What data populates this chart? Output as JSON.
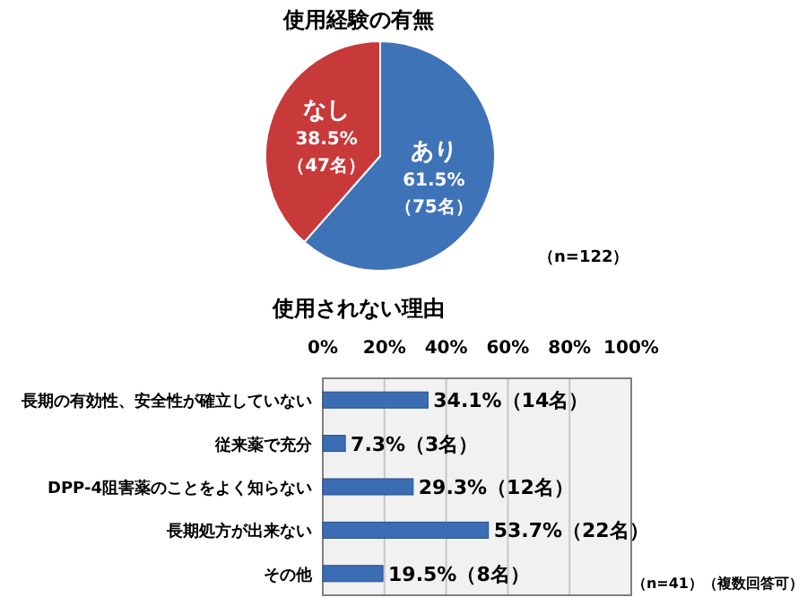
{
  "chart_data": [
    {
      "type": "pie",
      "title": "使用経験の有無",
      "categories": [
        "あり",
        "なし"
      ],
      "values": [
        61.5,
        38.5
      ],
      "colors": [
        "#3f73b8",
        "#c8393a"
      ],
      "value_labels": [
        "61.5%\n（75名）",
        "38.5%\n（47名）"
      ],
      "annotations": [
        "（n=122）"
      ]
    },
    {
      "type": "bar",
      "orientation": "horizontal",
      "title": "使用されない理由",
      "categories": [
        "長期の有効性、安全性が確立していない",
        "従来薬で充分",
        "DPP-4阻害薬のことをよく知らない",
        "長期処方が出来ない",
        "その他"
      ],
      "values": [
        34.1,
        7.3,
        29.3,
        53.7,
        19.5
      ],
      "color": "#3a6db3",
      "value_labels": [
        "34.1%（14名）",
        "7.3%（3名）",
        "29.3%（12名）",
        "53.7%（22名）",
        "19.5%（8名）"
      ],
      "xlim": [
        0,
        100
      ],
      "xticks": [
        {
          "value": 0,
          "label": "0%"
        },
        {
          "value": 20,
          "label": "20%"
        },
        {
          "value": 40,
          "label": "40%"
        },
        {
          "value": 60,
          "label": "60%"
        },
        {
          "value": 80,
          "label": "80%"
        },
        {
          "value": 100,
          "label": "100%"
        }
      ],
      "grid": "x",
      "annotations": [
        "（n=41）（複数回答可）"
      ]
    }
  ]
}
